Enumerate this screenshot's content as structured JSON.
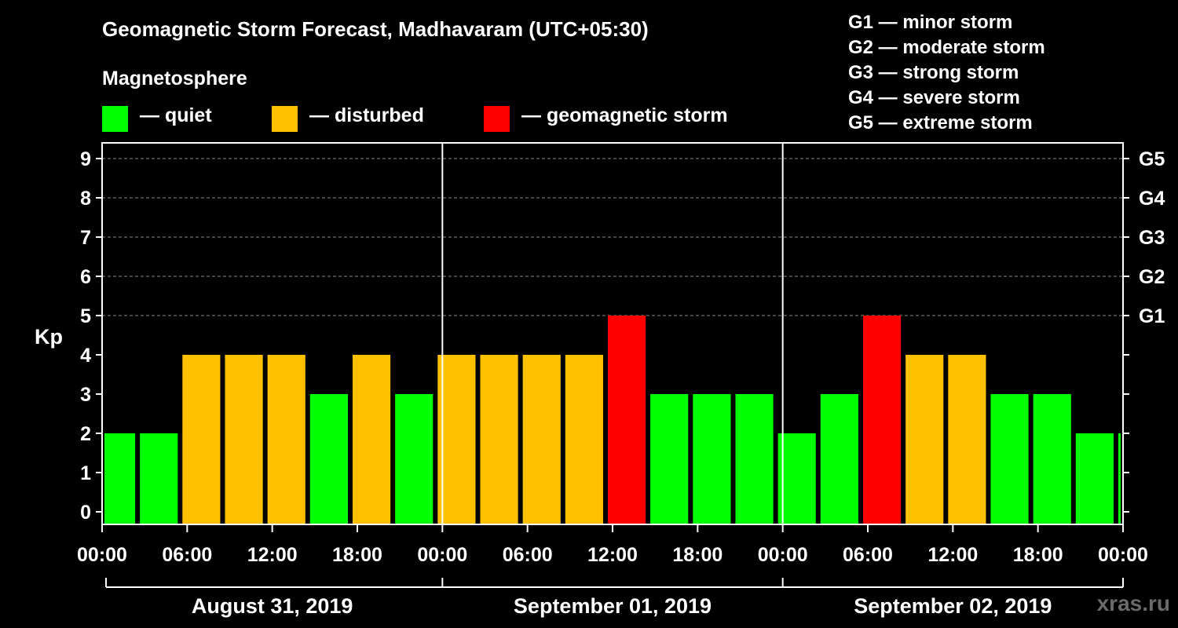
{
  "header": {
    "title": "Geomagnetic Storm Forecast, Madhavaram (UTC+05:30)",
    "section": "Magnetosphere"
  },
  "legend": {
    "items": [
      {
        "label": "— quiet",
        "color": "#00ff00"
      },
      {
        "label": "— disturbed",
        "color": "#ffc000"
      },
      {
        "label": "— geomagnetic storm",
        "color": "#ff0000"
      }
    ]
  },
  "storm_levels": [
    "G1 — minor storm",
    "G2 — moderate storm",
    "G3 — strong storm",
    "G4 — severe storm",
    "G5 — extreme storm"
  ],
  "watermark": "xras.ru",
  "chart_data": {
    "type": "bar",
    "title": "Geomagnetic Storm Forecast, Madhavaram (UTC+05:30)",
    "ylabel": "Kp",
    "ylim": [
      0,
      9
    ],
    "yticks": [
      "0",
      "1",
      "2",
      "3",
      "4",
      "5",
      "6",
      "7",
      "8",
      "9"
    ],
    "right_axis_labels": [
      {
        "kp": 5,
        "label": "G1"
      },
      {
        "kp": 6,
        "label": "G2"
      },
      {
        "kp": 7,
        "label": "G3"
      },
      {
        "kp": 8,
        "label": "G4"
      },
      {
        "kp": 9,
        "label": "G5"
      }
    ],
    "xtick_labels": [
      "00:00",
      "06:00",
      "12:00",
      "18:00",
      "00:00",
      "06:00",
      "12:00",
      "18:00",
      "00:00",
      "06:00",
      "12:00",
      "18:00",
      "00:00"
    ],
    "days": [
      "August 31, 2019",
      "September 01, 2019",
      "September 02, 2019"
    ],
    "colors": {
      "quiet": "#00ff00",
      "disturbed": "#ffc000",
      "storm": "#ff0000"
    },
    "bars": [
      {
        "start_hour": 0,
        "end_hour": 2.5,
        "kp": 2,
        "level": "quiet"
      },
      {
        "start_hour": 2.5,
        "end_hour": 5.5,
        "kp": 2,
        "level": "quiet"
      },
      {
        "start_hour": 5.5,
        "end_hour": 8.5,
        "kp": 4,
        "level": "disturbed"
      },
      {
        "start_hour": 8.5,
        "end_hour": 11.5,
        "kp": 4,
        "level": "disturbed"
      },
      {
        "start_hour": 11.5,
        "end_hour": 14.5,
        "kp": 4,
        "level": "disturbed"
      },
      {
        "start_hour": 14.5,
        "end_hour": 17.5,
        "kp": 3,
        "level": "quiet"
      },
      {
        "start_hour": 17.5,
        "end_hour": 20.5,
        "kp": 4,
        "level": "disturbed"
      },
      {
        "start_hour": 20.5,
        "end_hour": 23.5,
        "kp": 3,
        "level": "quiet"
      },
      {
        "start_hour": 23.5,
        "end_hour": 26.5,
        "kp": 4,
        "level": "disturbed"
      },
      {
        "start_hour": 26.5,
        "end_hour": 29.5,
        "kp": 4,
        "level": "disturbed"
      },
      {
        "start_hour": 29.5,
        "end_hour": 32.5,
        "kp": 4,
        "level": "disturbed"
      },
      {
        "start_hour": 32.5,
        "end_hour": 35.5,
        "kp": 4,
        "level": "disturbed"
      },
      {
        "start_hour": 35.5,
        "end_hour": 38.5,
        "kp": 5,
        "level": "storm"
      },
      {
        "start_hour": 38.5,
        "end_hour": 41.5,
        "kp": 3,
        "level": "quiet"
      },
      {
        "start_hour": 41.5,
        "end_hour": 44.5,
        "kp": 3,
        "level": "quiet"
      },
      {
        "start_hour": 44.5,
        "end_hour": 47.5,
        "kp": 3,
        "level": "quiet"
      },
      {
        "start_hour": 47.5,
        "end_hour": 50.5,
        "kp": 2,
        "level": "quiet"
      },
      {
        "start_hour": 50.5,
        "end_hour": 53.5,
        "kp": 3,
        "level": "quiet"
      },
      {
        "start_hour": 53.5,
        "end_hour": 56.5,
        "kp": 5,
        "level": "storm"
      },
      {
        "start_hour": 56.5,
        "end_hour": 59.5,
        "kp": 4,
        "level": "disturbed"
      },
      {
        "start_hour": 59.5,
        "end_hour": 62.5,
        "kp": 4,
        "level": "disturbed"
      },
      {
        "start_hour": 62.5,
        "end_hour": 65.5,
        "kp": 3,
        "level": "quiet"
      },
      {
        "start_hour": 65.5,
        "end_hour": 68.5,
        "kp": 3,
        "level": "quiet"
      },
      {
        "start_hour": 68.5,
        "end_hour": 71.5,
        "kp": 2,
        "level": "quiet"
      },
      {
        "start_hour": 71.5,
        "end_hour": 72,
        "kp": 2,
        "level": "quiet"
      }
    ]
  }
}
